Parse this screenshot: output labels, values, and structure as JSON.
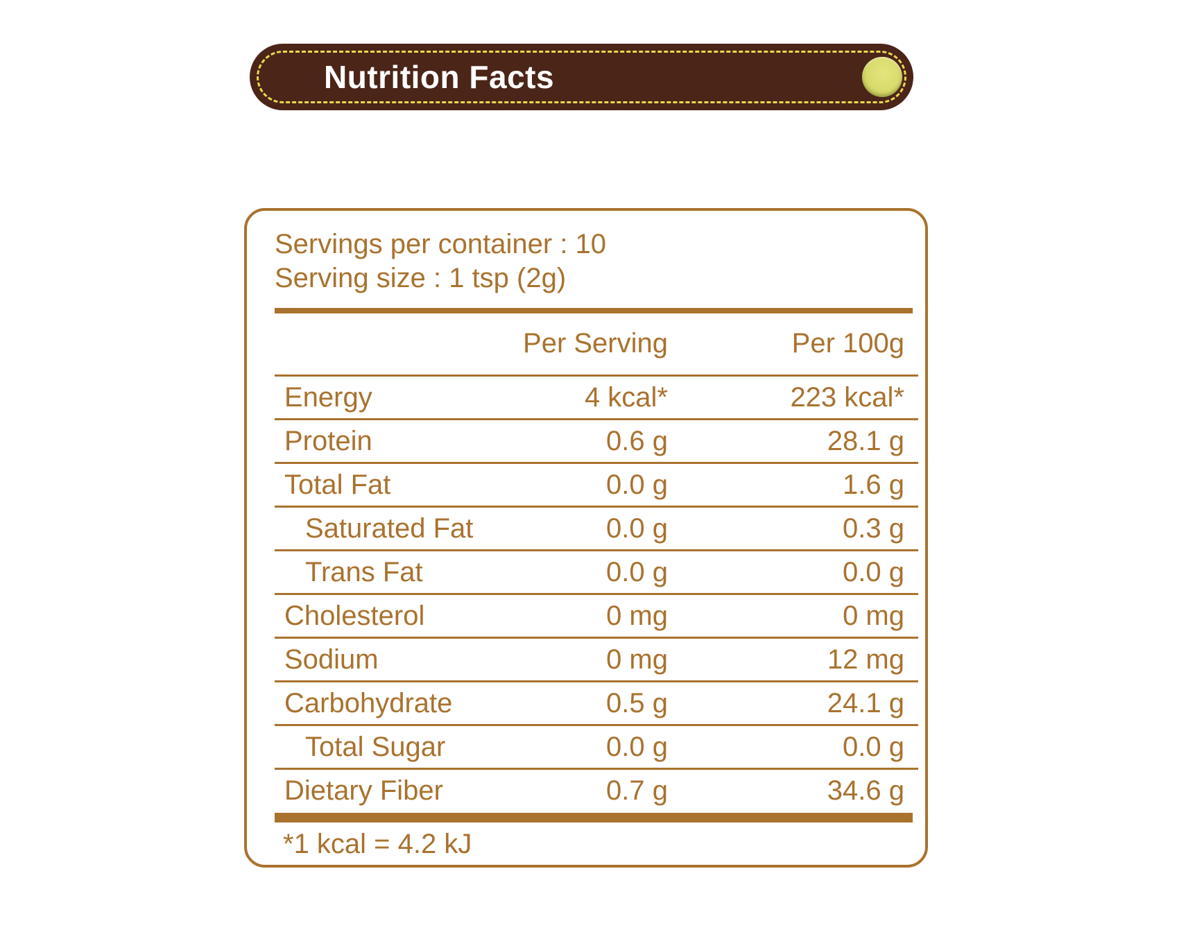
{
  "banner": {
    "title": "Nutrition Facts",
    "bg_color": "#4A2518",
    "stitch_color": "#EDD94F",
    "snap_color": "#D9DB6C"
  },
  "panel": {
    "accent_color": "#A9722E",
    "servings_per_container": "Servings per container : 10",
    "serving_size": "Serving size : 1 tsp (2g)",
    "columns": {
      "per_serving": "Per Serving",
      "per_100g": "Per 100g"
    },
    "rows": [
      {
        "label": "Energy",
        "per_serving": "4 kcal*",
        "per_100g": "223 kcal*",
        "indent": false
      },
      {
        "label": "Protein",
        "per_serving": "0.6 g",
        "per_100g": "28.1 g",
        "indent": false
      },
      {
        "label": "Total Fat",
        "per_serving": "0.0 g",
        "per_100g": "1.6 g",
        "indent": false
      },
      {
        "label": "Saturated Fat",
        "per_serving": "0.0 g",
        "per_100g": "0.3 g",
        "indent": true
      },
      {
        "label": "Trans Fat",
        "per_serving": "0.0 g",
        "per_100g": "0.0 g",
        "indent": true
      },
      {
        "label": "Cholesterol",
        "per_serving": "0 mg",
        "per_100g": "0 mg",
        "indent": false
      },
      {
        "label": "Sodium",
        "per_serving": "0 mg",
        "per_100g": "12 mg",
        "indent": false
      },
      {
        "label": "Carbohydrate",
        "per_serving": "0.5 g",
        "per_100g": "24.1 g",
        "indent": false
      },
      {
        "label": "Total Sugar",
        "per_serving": "0.0 g",
        "per_100g": "0.0 g",
        "indent": true
      },
      {
        "label": "Dietary Fiber",
        "per_serving": "0.7 g",
        "per_100g": "34.6 g",
        "indent": false
      }
    ],
    "footnote": "*1 kcal = 4.2 kJ"
  }
}
